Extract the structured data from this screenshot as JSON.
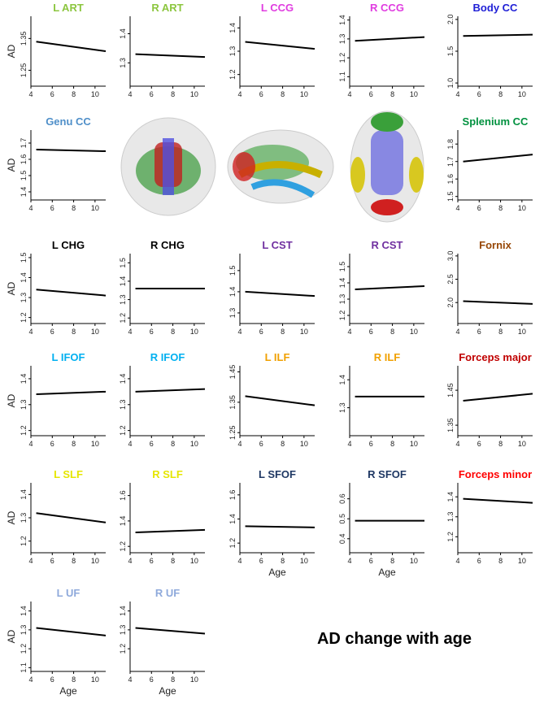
{
  "chart_data": [
    {
      "type": "line",
      "title": "L ART",
      "color": "#8cc63f",
      "y_label": "AD",
      "xlim": [
        4,
        11
      ],
      "xticks": [
        4,
        6,
        8,
        10
      ],
      "ylim": [
        1.2,
        1.42
      ],
      "yticks": [
        1.25,
        1.35
      ],
      "trend": {
        "x": [
          4.5,
          11
        ],
        "y": [
          1.34,
          1.31
        ]
      }
    },
    {
      "type": "line",
      "title": "R ART",
      "color": "#8cc63f",
      "xlim": [
        4,
        11
      ],
      "xticks": [
        4,
        6,
        8,
        10
      ],
      "ylim": [
        1.22,
        1.46
      ],
      "yticks": [
        1.3,
        1.4
      ],
      "trend": {
        "x": [
          4.5,
          11
        ],
        "y": [
          1.33,
          1.32
        ]
      }
    },
    {
      "type": "line",
      "title": "L CCG",
      "color": "#e03ce0",
      "xlim": [
        4,
        11
      ],
      "xticks": [
        4,
        6,
        8,
        10
      ],
      "ylim": [
        1.15,
        1.45
      ],
      "yticks": [
        1.2,
        1.3,
        1.4
      ],
      "trend": {
        "x": [
          4.5,
          11
        ],
        "y": [
          1.34,
          1.31
        ]
      }
    },
    {
      "type": "line",
      "title": "R CCG",
      "color": "#e03ce0",
      "xlim": [
        4,
        11
      ],
      "xticks": [
        4,
        6,
        8,
        10
      ],
      "ylim": [
        1.05,
        1.42
      ],
      "yticks": [
        1.1,
        1.2,
        1.3,
        1.4
      ],
      "trend": {
        "x": [
          4.5,
          11
        ],
        "y": [
          1.29,
          1.31
        ]
      }
    },
    {
      "type": "line",
      "title": "Body CC",
      "color": "#1f1fd6",
      "xlim": [
        4,
        11
      ],
      "xticks": [
        4,
        6,
        8,
        10
      ],
      "ylim": [
        0.95,
        2.05
      ],
      "yticks": [
        {
          "value": 1,
          "label": "1.0"
        },
        1.5,
        {
          "value": 2,
          "label": "2.0"
        }
      ],
      "trend": {
        "x": [
          4.5,
          11
        ],
        "y": [
          1.74,
          1.76
        ]
      }
    },
    {
      "type": "line",
      "title": "Genu CC",
      "color": "#4f8fc9",
      "y_label": "AD",
      "xlim": [
        4,
        11
      ],
      "xticks": [
        4,
        6,
        8,
        10
      ],
      "ylim": [
        1.35,
        1.78
      ],
      "yticks": [
        1.4,
        1.5,
        1.6,
        1.7
      ],
      "trend": {
        "x": [
          4.5,
          11
        ],
        "y": [
          1.66,
          1.65
        ]
      }
    },
    {
      "type": "line",
      "title": "Splenium CC",
      "color": "#00913f",
      "xlim": [
        4,
        11
      ],
      "xticks": [
        4,
        6,
        8,
        10
      ],
      "ylim": [
        1.48,
        1.88
      ],
      "yticks": [
        1.5,
        1.6,
        1.7,
        1.8
      ],
      "trend": {
        "x": [
          4.5,
          11
        ],
        "y": [
          1.7,
          1.74
        ]
      }
    },
    {
      "type": "line",
      "title": "L CHG",
      "color": "#000000",
      "y_label": "AD",
      "xlim": [
        4,
        11
      ],
      "xticks": [
        4,
        6,
        8,
        10
      ],
      "ylim": [
        1.17,
        1.52
      ],
      "yticks": [
        1.2,
        1.3,
        1.4,
        1.5
      ],
      "trend": {
        "x": [
          4.5,
          11
        ],
        "y": [
          1.34,
          1.31
        ]
      }
    },
    {
      "type": "line",
      "title": "R CHG",
      "color": "#000000",
      "xlim": [
        4,
        11
      ],
      "xticks": [
        4,
        6,
        8,
        10
      ],
      "ylim": [
        1.17,
        1.55
      ],
      "yticks": [
        1.2,
        1.3,
        1.4,
        1.5
      ],
      "trend": {
        "x": [
          4.5,
          11
        ],
        "y": [
          1.36,
          1.36
        ]
      }
    },
    {
      "type": "line",
      "title": "L CST",
      "color": "#7030a0",
      "xlim": [
        4,
        11
      ],
      "xticks": [
        4,
        6,
        8,
        10
      ],
      "ylim": [
        1.25,
        1.58
      ],
      "yticks": [
        1.3,
        1.4,
        1.5
      ],
      "trend": {
        "x": [
          4.5,
          11
        ],
        "y": [
          1.4,
          1.38
        ]
      }
    },
    {
      "type": "line",
      "title": "R CST",
      "color": "#7030a0",
      "xlim": [
        4,
        11
      ],
      "xticks": [
        4,
        6,
        8,
        10
      ],
      "ylim": [
        1.15,
        1.58
      ],
      "yticks": [
        1.2,
        1.3,
        1.4,
        1.5
      ],
      "trend": {
        "x": [
          4.5,
          11
        ],
        "y": [
          1.36,
          1.38
        ]
      }
    },
    {
      "type": "line",
      "title": "Fornix",
      "color": "#974706",
      "xlim": [
        4,
        11
      ],
      "xticks": [
        4,
        6,
        8,
        10
      ],
      "ylim": [
        1.55,
        3.05
      ],
      "yticks": [
        {
          "value": 2,
          "label": "2.0"
        },
        2.5,
        {
          "value": 3,
          "label": "3.0"
        }
      ],
      "trend": {
        "x": [
          4.5,
          11
        ],
        "y": [
          2.03,
          1.97
        ]
      }
    },
    {
      "type": "line",
      "title": "L IFOF",
      "color": "#00b0f0",
      "y_label": "AD",
      "xlim": [
        4,
        11
      ],
      "xticks": [
        4,
        6,
        8,
        10
      ],
      "ylim": [
        1.18,
        1.45
      ],
      "yticks": [
        1.2,
        1.3,
        1.4
      ],
      "trend": {
        "x": [
          4.5,
          11
        ],
        "y": [
          1.34,
          1.35
        ]
      }
    },
    {
      "type": "line",
      "title": "R IFOF",
      "color": "#00b0f0",
      "xlim": [
        4,
        11
      ],
      "xticks": [
        4,
        6,
        8,
        10
      ],
      "ylim": [
        1.18,
        1.45
      ],
      "yticks": [
        1.2,
        1.3,
        1.4
      ],
      "trend": {
        "x": [
          4.5,
          11
        ],
        "y": [
          1.35,
          1.36
        ]
      }
    },
    {
      "type": "line",
      "title": "L ILF",
      "color": "#f0a000",
      "xlim": [
        4,
        11
      ],
      "xticks": [
        4,
        6,
        8,
        10
      ],
      "ylim": [
        1.24,
        1.47
      ],
      "yticks": [
        1.25,
        1.35,
        1.45
      ],
      "trend": {
        "x": [
          4.5,
          11
        ],
        "y": [
          1.37,
          1.34
        ]
      }
    },
    {
      "type": "line",
      "title": "R ILF",
      "color": "#f0a000",
      "xlim": [
        4,
        11
      ],
      "xticks": [
        4,
        6,
        8,
        10
      ],
      "ylim": [
        1.2,
        1.45
      ],
      "yticks": [
        1.3,
        1.4
      ],
      "trend": {
        "x": [
          4.5,
          11
        ],
        "y": [
          1.34,
          1.34
        ]
      }
    },
    {
      "type": "line",
      "title": "Forceps major",
      "color": "#c00000",
      "xlim": [
        4,
        11
      ],
      "xticks": [
        4,
        6,
        8,
        10
      ],
      "ylim": [
        1.32,
        1.52
      ],
      "yticks": [
        1.35,
        1.45
      ],
      "trend": {
        "x": [
          4.5,
          11
        ],
        "y": [
          1.42,
          1.44
        ]
      }
    },
    {
      "type": "line",
      "title": "L SLF",
      "color": "#e6e600",
      "y_label": "AD",
      "xlim": [
        4,
        11
      ],
      "xticks": [
        4,
        6,
        8,
        10
      ],
      "ylim": [
        1.15,
        1.45
      ],
      "yticks": [
        1.2,
        1.3,
        1.4
      ],
      "trend": {
        "x": [
          4.5,
          11
        ],
        "y": [
          1.32,
          1.28
        ]
      }
    },
    {
      "type": "line",
      "title": "R SLF",
      "color": "#e6e600",
      "xlim": [
        4,
        11
      ],
      "xticks": [
        4,
        6,
        8,
        10
      ],
      "ylim": [
        1.15,
        1.7
      ],
      "yticks": [
        1.2,
        1.4,
        1.6
      ],
      "trend": {
        "x": [
          4.5,
          11
        ],
        "y": [
          1.31,
          1.33
        ]
      }
    },
    {
      "type": "line",
      "title": "L SFOF",
      "color": "#1f3864",
      "x_label": "Age",
      "xlim": [
        4,
        11
      ],
      "xticks": [
        4,
        6,
        8,
        10
      ],
      "ylim": [
        1.12,
        1.7
      ],
      "yticks": [
        1.2,
        1.4,
        1.6
      ],
      "trend": {
        "x": [
          4.5,
          11
        ],
        "y": [
          1.34,
          1.33
        ]
      }
    },
    {
      "type": "line",
      "title": "R SFOF",
      "color": "#1f3864",
      "x_label": "Age",
      "xlim": [
        4,
        11
      ],
      "xticks": [
        4,
        6,
        8,
        10
      ],
      "ylim": [
        0.33,
        0.68
      ],
      "yticks": [
        0.4,
        0.5,
        0.6
      ],
      "trend": {
        "x": [
          4.5,
          11
        ],
        "y": [
          0.49,
          0.49
        ]
      }
    },
    {
      "type": "line",
      "title": "Forceps minor",
      "color": "#ff0000",
      "xlim": [
        4,
        11
      ],
      "xticks": [
        4,
        6,
        8,
        10
      ],
      "ylim": [
        1.12,
        1.47
      ],
      "yticks": [
        1.2,
        1.3,
        1.4
      ],
      "trend": {
        "x": [
          4.5,
          11
        ],
        "y": [
          1.39,
          1.37
        ]
      }
    },
    {
      "type": "line",
      "title": "L UF",
      "color": "#8ea9db",
      "y_label": "AD",
      "x_label": "Age",
      "xlim": [
        4,
        11
      ],
      "xticks": [
        4,
        6,
        8,
        10
      ],
      "ylim": [
        1.08,
        1.45
      ],
      "yticks": [
        1.1,
        1.2,
        1.3,
        1.4
      ],
      "trend": {
        "x": [
          4.5,
          11
        ],
        "y": [
          1.31,
          1.27
        ]
      }
    },
    {
      "type": "line",
      "title": "R UF",
      "color": "#8ea9db",
      "x_label": "Age",
      "xlim": [
        4,
        11
      ],
      "xticks": [
        4,
        6,
        8,
        10
      ],
      "ylim": [
        1.08,
        1.45
      ],
      "yticks": [
        1.2,
        1.3,
        1.4
      ],
      "trend": {
        "x": [
          4.5,
          11
        ],
        "y": [
          1.31,
          1.28
        ]
      }
    }
  ],
  "annotation": "AD change with age"
}
